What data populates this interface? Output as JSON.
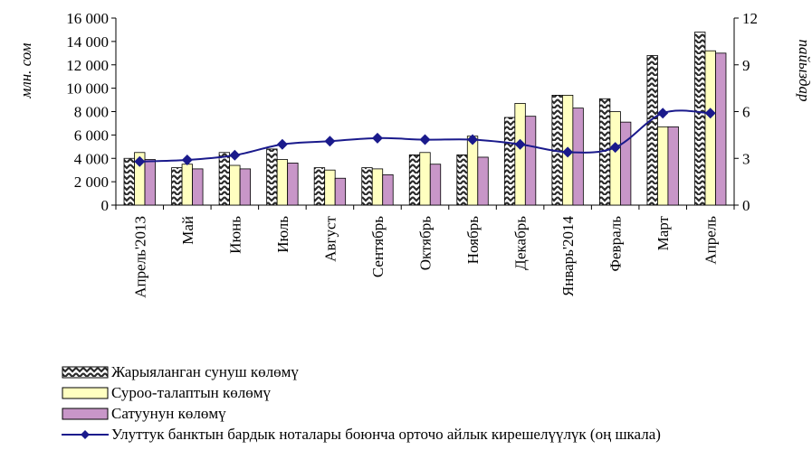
{
  "chart_data": {
    "type": "bar",
    "categories": [
      "Апрель'2013",
      "Май",
      "Июнь",
      "Июль",
      "Август",
      "Сентябрь",
      "Октябрь",
      "Ноябрь",
      "Декабрь",
      "Январь'2014",
      "Февраль",
      "Март",
      "Апрель"
    ],
    "series": [
      {
        "name": "Жарыяланган сунуш көлөмү",
        "kind": "bar",
        "color": "#ffffff",
        "pattern": "zigzag",
        "values": [
          4000,
          3200,
          4500,
          4800,
          3200,
          3200,
          4300,
          4300,
          7500,
          9400,
          9100,
          12800,
          14800
        ]
      },
      {
        "name": "Суроо-талаптын көлөмү",
        "kind": "bar",
        "color": "#ffffc0",
        "values": [
          4500,
          3500,
          3400,
          3900,
          3000,
          3100,
          4500,
          5900,
          8700,
          9400,
          8000,
          6700,
          13200
        ]
      },
      {
        "name": "Сатуунун көлөмү",
        "kind": "bar",
        "color": "#c896c8",
        "values": [
          3900,
          3100,
          3100,
          3600,
          2300,
          2600,
          3500,
          4100,
          7600,
          8300,
          7100,
          6700,
          13000
        ]
      },
      {
        "name": "Улуттук банктын бардык ноталары боюнча орточо айлык кирешелүүлүк (оң шкала)",
        "kind": "line",
        "axis": "right",
        "color": "#1a1a8c",
        "values": [
          2.8,
          2.9,
          3.2,
          3.9,
          4.1,
          4.3,
          4.2,
          4.2,
          3.9,
          3.4,
          3.7,
          5.9,
          5.9
        ]
      }
    ],
    "ylabel_left": "млн. сом",
    "ylabel_right": "пайыздар",
    "ylim_left": [
      0,
      16000
    ],
    "ylim_right": [
      0,
      12
    ],
    "yticks_left": [
      "0",
      "2 000",
      "4 000",
      "6 000",
      "8 000",
      "10 000",
      "12 000",
      "14 000",
      "16 000"
    ],
    "yticks_right": [
      "0",
      "3",
      "6",
      "9",
      "12"
    ],
    "legend_position": "bottom-left",
    "grid": false
  }
}
